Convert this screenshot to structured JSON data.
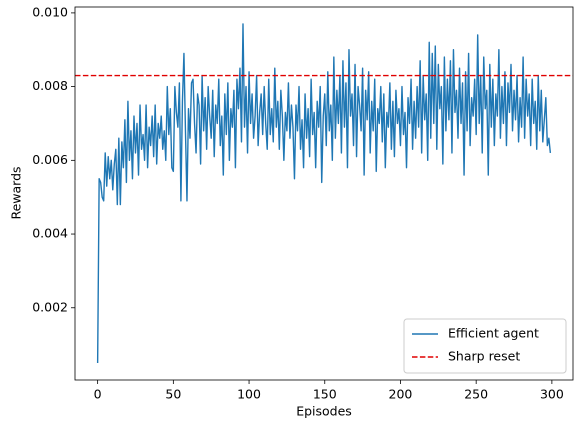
{
  "chart_data": {
    "type": "line",
    "xlabel": "Episodes",
    "ylabel": "Rewards",
    "x": [
      0,
      1,
      2,
      3,
      4,
      5,
      6,
      7,
      8,
      9,
      10,
      11,
      12,
      13,
      14,
      15,
      16,
      17,
      18,
      19,
      20,
      21,
      22,
      23,
      24,
      25,
      26,
      27,
      28,
      29,
      30,
      31,
      32,
      33,
      34,
      35,
      36,
      37,
      38,
      39,
      40,
      41,
      42,
      43,
      44,
      45,
      46,
      47,
      48,
      49,
      50,
      51,
      52,
      53,
      54,
      55,
      56,
      57,
      58,
      59,
      60,
      61,
      62,
      63,
      64,
      65,
      66,
      67,
      68,
      69,
      70,
      71,
      72,
      73,
      74,
      75,
      76,
      77,
      78,
      79,
      80,
      81,
      82,
      83,
      84,
      85,
      86,
      87,
      88,
      89,
      90,
      91,
      92,
      93,
      94,
      95,
      96,
      97,
      98,
      99,
      100,
      101,
      102,
      103,
      104,
      105,
      106,
      107,
      108,
      109,
      110,
      111,
      112,
      113,
      114,
      115,
      116,
      117,
      118,
      119,
      120,
      121,
      122,
      123,
      124,
      125,
      126,
      127,
      128,
      129,
      130,
      131,
      132,
      133,
      134,
      135,
      136,
      137,
      138,
      139,
      140,
      141,
      142,
      143,
      144,
      145,
      146,
      147,
      148,
      149,
      150,
      151,
      152,
      153,
      154,
      155,
      156,
      157,
      158,
      159,
      160,
      161,
      162,
      163,
      164,
      165,
      166,
      167,
      168,
      169,
      170,
      171,
      172,
      173,
      174,
      175,
      176,
      177,
      178,
      179,
      180,
      181,
      182,
      183,
      184,
      185,
      186,
      187,
      188,
      189,
      190,
      191,
      192,
      193,
      194,
      195,
      196,
      197,
      198,
      199,
      200,
      201,
      202,
      203,
      204,
      205,
      206,
      207,
      208,
      209,
      210,
      211,
      212,
      213,
      214,
      215,
      216,
      217,
      218,
      219,
      220,
      221,
      222,
      223,
      224,
      225,
      226,
      227,
      228,
      229,
      230,
      231,
      232,
      233,
      234,
      235,
      236,
      237,
      238,
      239,
      240,
      241,
      242,
      243,
      244,
      245,
      246,
      247,
      248,
      249,
      250,
      251,
      252,
      253,
      254,
      255,
      256,
      257,
      258,
      259,
      260,
      261,
      262,
      263,
      264,
      265,
      266,
      267,
      268,
      269,
      270,
      271,
      272,
      273,
      274,
      275,
      276,
      277,
      278,
      279,
      280,
      281,
      282,
      283,
      284,
      285,
      286,
      287,
      288,
      289,
      290,
      291,
      292,
      293,
      294,
      295,
      296,
      297,
      298,
      299
    ],
    "series": [
      {
        "name": "Efficient agent",
        "color": "#1f77b4",
        "values": [
          0.0005,
          0.0055,
          0.0054,
          0.005,
          0.0049,
          0.0062,
          0.0053,
          0.0061,
          0.0055,
          0.006,
          0.0052,
          0.0059,
          0.0063,
          0.0048,
          0.0066,
          0.0048,
          0.0065,
          0.0058,
          0.0071,
          0.0054,
          0.0076,
          0.006,
          0.0068,
          0.0055,
          0.0072,
          0.0062,
          0.007,
          0.0056,
          0.0075,
          0.0063,
          0.0067,
          0.006,
          0.0075,
          0.0058,
          0.0069,
          0.0064,
          0.0072,
          0.0061,
          0.0075,
          0.0059,
          0.007,
          0.0066,
          0.0072,
          0.0063,
          0.0068,
          0.006,
          0.008,
          0.0067,
          0.0074,
          0.0058,
          0.0057,
          0.008,
          0.0073,
          0.0069,
          0.0081,
          0.0049,
          0.0076,
          0.0089,
          0.0068,
          0.0049,
          0.0074,
          0.0066,
          0.0081,
          0.0082,
          0.007,
          0.0062,
          0.0078,
          0.0075,
          0.0059,
          0.0083,
          0.0068,
          0.0077,
          0.0063,
          0.008,
          0.0072,
          0.0066,
          0.0079,
          0.0061,
          0.0075,
          0.007,
          0.0082,
          0.0064,
          0.0072,
          0.0056,
          0.0078,
          0.0067,
          0.0081,
          0.006,
          0.0074,
          0.0069,
          0.0079,
          0.0058,
          0.0082,
          0.0074,
          0.0085,
          0.0065,
          0.0097,
          0.0069,
          0.008,
          0.0062,
          0.0084,
          0.007,
          0.0078,
          0.0066,
          0.0072,
          0.0083,
          0.0064,
          0.0073,
          0.0078,
          0.0067,
          0.008,
          0.007,
          0.0063,
          0.0082,
          0.0067,
          0.0074,
          0.0065,
          0.0085,
          0.0069,
          0.0076,
          0.0063,
          0.0079,
          0.0072,
          0.006,
          0.0073,
          0.0068,
          0.0081,
          0.0066,
          0.0075,
          0.0069,
          0.0055,
          0.0075,
          0.0068,
          0.008,
          0.0063,
          0.0071,
          0.0058,
          0.0078,
          0.0066,
          0.0074,
          0.0061,
          0.0082,
          0.0067,
          0.0073,
          0.0058,
          0.0076,
          0.0069,
          0.008,
          0.0054,
          0.0072,
          0.0078,
          0.0064,
          0.0084,
          0.0068,
          0.0075,
          0.006,
          0.0088,
          0.0066,
          0.0079,
          0.007,
          0.0083,
          0.0062,
          0.0087,
          0.0069,
          0.0081,
          0.0058,
          0.009,
          0.0072,
          0.0078,
          0.0064,
          0.0086,
          0.0061,
          0.008,
          0.0075,
          0.0068,
          0.0085,
          0.0056,
          0.0079,
          0.0071,
          0.0084,
          0.0062,
          0.0076,
          0.0068,
          0.0082,
          0.0057,
          0.0074,
          0.007,
          0.008,
          0.0065,
          0.0078,
          0.0058,
          0.0073,
          0.0069,
          0.0081,
          0.0063,
          0.0076,
          0.0061,
          0.0079,
          0.007,
          0.0074,
          0.0064,
          0.008,
          0.0067,
          0.0073,
          0.0058,
          0.0077,
          0.007,
          0.0082,
          0.0063,
          0.0076,
          0.0066,
          0.008,
          0.0069,
          0.0087,
          0.0062,
          0.0083,
          0.0071,
          0.0078,
          0.006,
          0.0092,
          0.0066,
          0.0089,
          0.007,
          0.0091,
          0.0063,
          0.0086,
          0.0074,
          0.008,
          0.0059,
          0.0088,
          0.0068,
          0.0082,
          0.0071,
          0.0087,
          0.0062,
          0.009,
          0.0073,
          0.0079,
          0.0066,
          0.0085,
          0.007,
          0.0081,
          0.0056,
          0.0084,
          0.0068,
          0.0089,
          0.0064,
          0.0077,
          0.0072,
          0.0082,
          0.0067,
          0.0094,
          0.007,
          0.0083,
          0.0062,
          0.0088,
          0.0074,
          0.0079,
          0.0056,
          0.0086,
          0.0069,
          0.0082,
          0.0064,
          0.0078,
          0.0072,
          0.009,
          0.0066,
          0.008,
          0.007,
          0.0084,
          0.0064,
          0.0081,
          0.0073,
          0.0086,
          0.0068,
          0.0079,
          0.0071,
          0.0083,
          0.0065,
          0.0077,
          0.0069,
          0.0088,
          0.0066,
          0.0082,
          0.0072,
          0.0078,
          0.0064,
          0.0082,
          0.007,
          0.0076,
          0.0063,
          0.0083,
          0.0068,
          0.0079,
          0.0065,
          0.0071,
          0.0077,
          0.0064,
          0.0066,
          0.0062
        ]
      }
    ],
    "reference_lines": [
      {
        "name": "Sharp reset",
        "color": "#e00000",
        "value": 0.0083,
        "style": "dashed"
      }
    ],
    "xlim": [
      -14.95,
      313.95
    ],
    "xticks": [
      0,
      50,
      100,
      150,
      200,
      250,
      300
    ],
    "ylim": [
      4e-05,
      0.01016
    ],
    "yticks": [
      0.002,
      0.004,
      0.006,
      0.008,
      {
        "value": 0.01,
        "label": "0.010"
      }
    ],
    "legend": "lower right",
    "grid": false
  }
}
